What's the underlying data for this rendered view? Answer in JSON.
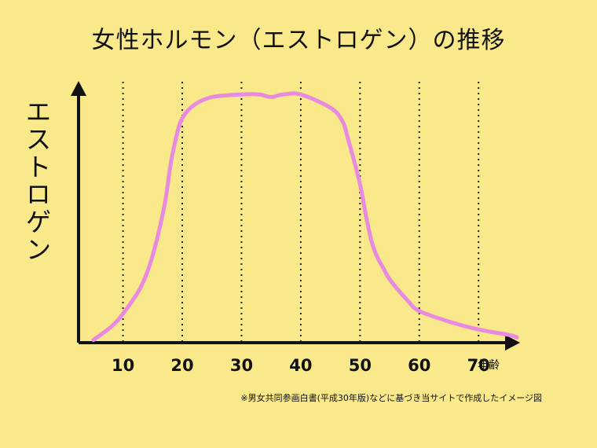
{
  "chart_data": {
    "type": "line",
    "title": "女性ホルモン（エストロゲン）の推移",
    "ylabel": "エストロゲン",
    "xlabel": "年齢",
    "xticks": [
      10,
      20,
      30,
      40,
      50,
      60,
      70
    ],
    "xlim": [
      2.5,
      77
    ],
    "ylim": [
      0,
      100
    ],
    "grid": "vertical dotted lines at ticks",
    "colors": {
      "line": "#e88ae0",
      "axis": "#111111",
      "background": "#f9e98b"
    },
    "series": [
      {
        "x": [
          5,
          8,
          10,
          13,
          15,
          17,
          18,
          19,
          20,
          22,
          25,
          30,
          33,
          35,
          37,
          40,
          45,
          47,
          48,
          50,
          51,
          52,
          53,
          54,
          55,
          58,
          60,
          65,
          70,
          75,
          76.5
        ],
        "y": [
          1,
          6,
          11,
          21,
          33,
          52,
          67,
          78,
          85,
          90,
          93,
          94,
          94,
          93,
          94,
          94,
          89,
          84,
          77,
          60,
          48,
          38,
          32,
          28,
          24,
          16,
          12,
          8,
          5,
          3,
          2
        ]
      }
    ],
    "source_note": "※男女共同参画白書(平成30年版)などに基づき当サイトで作成したイメージ図"
  }
}
